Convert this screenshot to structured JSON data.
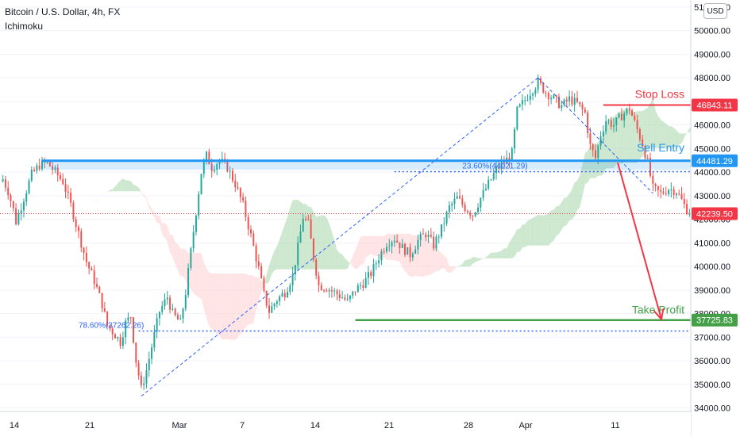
{
  "header": {
    "title": "Bitcoin / U.S. Dollar, 4h, FX",
    "indicator": "Ichimoku"
  },
  "currency_badge": "USD",
  "colors": {
    "bull": "#26a69a",
    "bear": "#ef5350",
    "stop_loss": "#f23645",
    "take_profit": "#43a047",
    "sell_entry": "#2196f3",
    "fib_line": "#2962ff",
    "cloud_green": "#a5d6a7",
    "cloud_red": "#ffcdd2",
    "last_price": "#f23645",
    "axis_text": "#131722",
    "grid": "#f0f3fa"
  },
  "annotations": {
    "stop_loss_label": "Stop Loss",
    "sell_entry_label": "Sell Entry",
    "take_profit_label": "Take Profit",
    "fib_upper_label": "23.60%(44021.29)",
    "fib_lower_label": "78.60%(37262.26)"
  },
  "chart_data": {
    "type": "candlestick",
    "symbol": "Bitcoin / U.S. Dollar",
    "timeframe": "4h",
    "exchange": "FX",
    "indicator": "Ichimoku",
    "x_tick_labels": [
      "14",
      "21",
      "Mar",
      "7",
      "14",
      "21",
      "28",
      "Apr",
      "11"
    ],
    "y_ticks": [
      34000,
      35000,
      36000,
      37000,
      38000,
      39000,
      40000,
      41000,
      42000,
      43000,
      44000,
      45000,
      46000,
      47000,
      48000,
      49000,
      50000,
      51000
    ],
    "y_tick_labels": [
      "34000.00",
      "35000.00",
      "36000.00",
      "37000.00",
      "38000.00",
      "39000.00",
      "40000.00",
      "41000.00",
      "42000.00",
      "43000.00",
      "44000.00",
      "45000.00",
      "46000.00",
      "47000.00",
      "48000.00",
      "49000.00",
      "50000.00",
      "51000.00"
    ],
    "ylim": [
      33850,
      51300
    ],
    "levels": {
      "stop_loss": 46843.11,
      "sell_entry": 44481.29,
      "take_profit": 37725.83,
      "last_price": 42239.5,
      "fib_23_6": 44021.29,
      "fib_78_6": 37262.26
    },
    "level_labels": {
      "stop_loss": "46843.11",
      "sell_entry": "44481.29",
      "take_profit": "37725.83",
      "last_price": "42239.50"
    },
    "price_path": [
      [
        0,
        43700
      ],
      [
        2,
        43200
      ],
      [
        4,
        42400
      ],
      [
        5,
        41900
      ],
      [
        8,
        42900
      ],
      [
        11,
        43900
      ],
      [
        14,
        44300
      ],
      [
        17,
        44400
      ],
      [
        20,
        44000
      ],
      [
        23,
        43600
      ],
      [
        26,
        42600
      ],
      [
        29,
        41400
      ],
      [
        32,
        40200
      ],
      [
        35,
        39400
      ],
      [
        38,
        38400
      ],
      [
        40,
        37500
      ],
      [
        43,
        37100
      ],
      [
        45,
        36800
      ],
      [
        47,
        37600
      ],
      [
        49,
        37900
      ],
      [
        51,
        36000
      ],
      [
        53,
        34800
      ],
      [
        55,
        35600
      ],
      [
        57,
        36600
      ],
      [
        60,
        38100
      ],
      [
        63,
        38700
      ],
      [
        65,
        38000
      ],
      [
        68,
        37600
      ],
      [
        70,
        38900
      ],
      [
        73,
        41500
      ],
      [
        76,
        44000
      ],
      [
        78,
        44700
      ],
      [
        80,
        44200
      ],
      [
        83,
        44500
      ],
      [
        86,
        44200
      ],
      [
        89,
        43500
      ],
      [
        92,
        42600
      ],
      [
        95,
        41300
      ],
      [
        98,
        39900
      ],
      [
        100,
        38800
      ],
      [
        102,
        38100
      ],
      [
        105,
        38600
      ],
      [
        108,
        38900
      ],
      [
        111,
        39600
      ],
      [
        113,
        40800
      ],
      [
        115,
        42100
      ],
      [
        117,
        41800
      ],
      [
        119,
        40400
      ],
      [
        121,
        39200
      ],
      [
        124,
        39100
      ],
      [
        127,
        38900
      ],
      [
        130,
        38700
      ],
      [
        132,
        38500
      ],
      [
        135,
        39000
      ],
      [
        138,
        39300
      ],
      [
        141,
        39700
      ],
      [
        144,
        40400
      ],
      [
        147,
        41000
      ],
      [
        150,
        41200
      ],
      [
        153,
        40800
      ],
      [
        156,
        40500
      ],
      [
        159,
        41100
      ],
      [
        162,
        41400
      ],
      [
        165,
        40900
      ],
      [
        168,
        41600
      ],
      [
        171,
        42500
      ],
      [
        174,
        42900
      ],
      [
        177,
        42500
      ],
      [
        180,
        42200
      ],
      [
        183,
        42900
      ],
      [
        186,
        43500
      ],
      [
        189,
        44100
      ],
      [
        192,
        44400
      ],
      [
        195,
        44800
      ],
      [
        197,
        46600
      ],
      [
        199,
        46900
      ],
      [
        202,
        47400
      ],
      [
        205,
        47800
      ],
      [
        208,
        47400
      ],
      [
        211,
        47100
      ],
      [
        214,
        46800
      ],
      [
        217,
        47100
      ],
      [
        220,
        46900
      ],
      [
        223,
        46500
      ],
      [
        225,
        45100
      ],
      [
        227,
        44600
      ],
      [
        229,
        45600
      ],
      [
        231,
        46200
      ],
      [
        234,
        46000
      ],
      [
        237,
        46400
      ],
      [
        240,
        46700
      ],
      [
        243,
        45800
      ],
      [
        245,
        45200
      ],
      [
        247,
        44400
      ],
      [
        249,
        43300
      ],
      [
        252,
        43100
      ],
      [
        255,
        43300
      ],
      [
        258,
        43200
      ],
      [
        261,
        42600
      ],
      [
        263,
        42239.5
      ]
    ],
    "n_bars": 264
  }
}
